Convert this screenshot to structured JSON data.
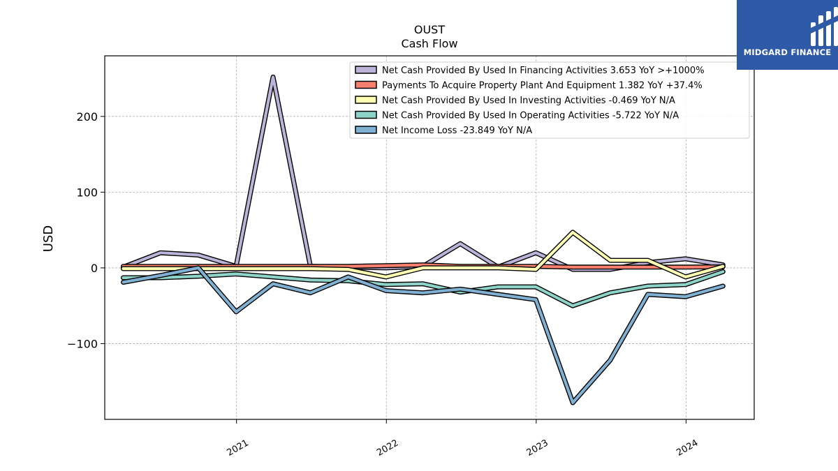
{
  "brand": {
    "name": "MIDGARD FINANCE",
    "icon": "midgard-logo-icon",
    "color": "#2f5aa8"
  },
  "chart_data": {
    "type": "line",
    "title": "OUST",
    "subtitle": "Cash Flow",
    "xlabel": "",
    "ylabel": "USD",
    "ylim": [
      -200,
      280
    ],
    "xlim": [
      "2020-02-15",
      "2024-06-15"
    ],
    "yticks": [
      -100,
      0,
      100,
      200
    ],
    "ytick_labels": [
      "−100",
      "0",
      "100",
      "200"
    ],
    "xticks": [
      "2021-01-01",
      "2022-01-01",
      "2023-01-01",
      "2024-01-01"
    ],
    "xtick_labels": [
      "2021",
      "2022",
      "2023",
      "2024"
    ],
    "grid": true,
    "legend_position": "top-right",
    "x": [
      "2020-03-31",
      "2020-06-30",
      "2020-09-30",
      "2020-12-31",
      "2021-03-31",
      "2021-06-30",
      "2021-09-30",
      "2021-12-31",
      "2022-03-31",
      "2022-06-30",
      "2022-09-30",
      "2022-12-31",
      "2023-03-31",
      "2023-06-30",
      "2023-09-30",
      "2023-12-31",
      "2024-03-31"
    ],
    "series": [
      {
        "name": "Net Cash Provided By Used In Financing Activities",
        "legend_label": "Net Cash Provided By Used In Financing Activities  3.653 YoY >+1000%",
        "color": "#bcb3d8",
        "values": [
          1,
          20,
          17,
          2,
          252,
          2,
          1,
          0,
          2,
          32,
          1,
          20,
          -2,
          -2,
          7,
          12,
          4
        ]
      },
      {
        "name": "Payments To Acquire Property Plant And Equipment",
        "legend_label": "Payments To Acquire Property Plant And Equipment  1.382 YoY +37.4%",
        "color": "#f9806f",
        "values": [
          2,
          2,
          2,
          2,
          2,
          2,
          2,
          3,
          4,
          2,
          2,
          2,
          1,
          1,
          1,
          1,
          1.4
        ]
      },
      {
        "name": "Net Cash Provided By Used In Investing Activities",
        "legend_label": "Net Cash Provided By Used In Investing Activities  -0.469 YoY N/A",
        "color": "#ffffb3",
        "values": [
          -1,
          -1,
          -1,
          -1,
          -1,
          -1,
          -2,
          -12,
          0,
          0,
          0,
          -2,
          47,
          10,
          10,
          -12,
          2
        ]
      },
      {
        "name": "Net Cash Provided By Used In Operating Activities",
        "legend_label": "Net Cash Provided By Used In Operating Activities  -5.722 YoY N/A",
        "color": "#8dd3c7",
        "values": [
          -13,
          -13,
          -11,
          -8,
          -12,
          -16,
          -17,
          -22,
          -21,
          -32,
          -25,
          -25,
          -50,
          -33,
          -24,
          -22,
          -5
        ]
      },
      {
        "name": "Net Income Loss",
        "legend_label": "Net Income Loss  -23.849 YoY N/A",
        "color": "#80b1d3",
        "values": [
          -19,
          -10,
          0,
          -58,
          -21,
          -33,
          -12,
          -30,
          -33,
          -28,
          -35,
          -42,
          -178,
          -122,
          -35,
          -38,
          -24
        ]
      }
    ]
  }
}
